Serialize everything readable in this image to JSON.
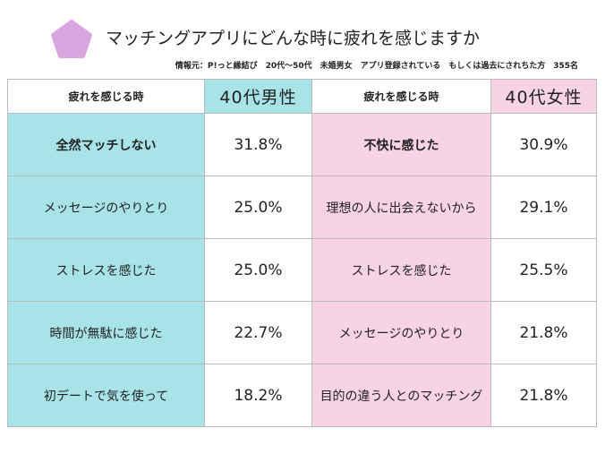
{
  "header": {
    "title": "マッチングアプリにどんな時に疲れを感じますか",
    "source": "情報元：P!っと縁結び　20代〜50代　未婚男女　アプリ登録されている　もしくは過去にされちた方　355名"
  },
  "table": {
    "columns": [
      "疲れを感じる時",
      "40代男性",
      "疲れを感じる時",
      "40代女性"
    ],
    "rows": [
      [
        "全然マッチしない",
        "31.8%",
        "不快に感じた",
        "30.9%"
      ],
      [
        "メッセージのやりとり",
        "25.0%",
        "理想の人に出会えないから",
        "29.1%"
      ],
      [
        "ストレスを感じた",
        "25.0%",
        "ストレスを感じた",
        "25.5%"
      ],
      [
        "時間が無駄に感じた",
        "22.7%",
        "メッセージのやりとり",
        "21.8%"
      ],
      [
        "初デートで気を使って",
        "18.2%",
        "目的の違う人とのマッチング",
        "21.8%"
      ]
    ]
  }
}
